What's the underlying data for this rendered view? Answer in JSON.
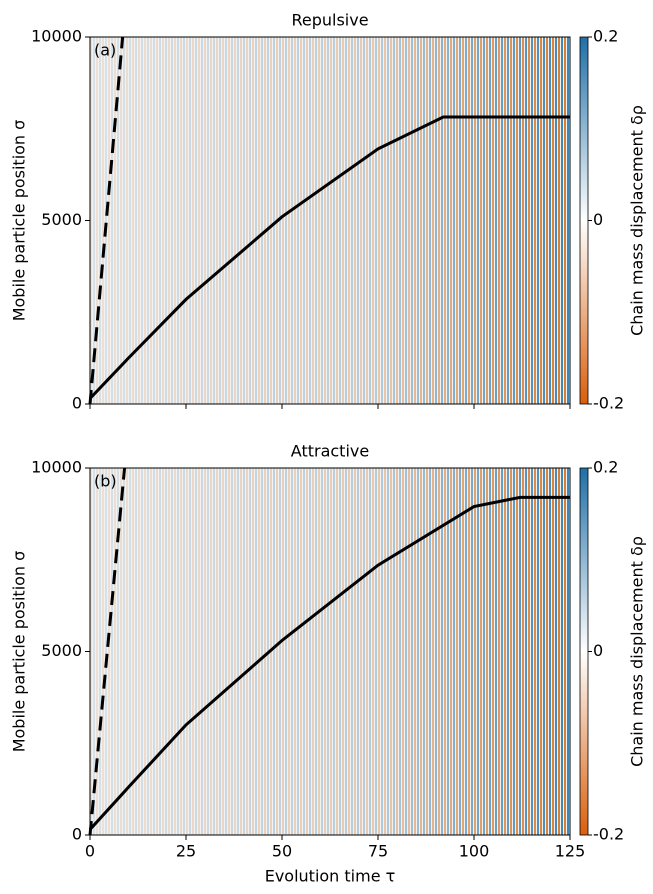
{
  "chart_data": [
    {
      "type": "line",
      "title": "Repulsive",
      "panel_label": "(a)",
      "ylabel": "Mobile particle position σ",
      "xlim": [
        0,
        125
      ],
      "xticks": [
        0,
        25,
        50,
        75,
        100,
        125
      ],
      "ylim": [
        0,
        10000
      ],
      "yticks": [
        0,
        5000,
        10000
      ],
      "series": [
        {
          "color": "#000000",
          "x": [
            0,
            10,
            25,
            50,
            75,
            92,
            125
          ],
          "values": [
            150,
            1250,
            2850,
            5100,
            6950,
            7820,
            7820
          ]
        },
        {
          "color": "#000000",
          "dashed": true,
          "x": [
            0,
            8.5
          ],
          "values": [
            0,
            10000
          ]
        }
      ],
      "colorbar": {
        "label": "Chain mass displacement δρ",
        "lim": [
          -0.2,
          0.2
        ],
        "ticks": [
          0.2,
          0,
          -0.2
        ],
        "colors": [
          "#d95f0e",
          "#ffffff",
          "#1f6fa8"
        ]
      }
    },
    {
      "type": "line",
      "title": "Attractive",
      "panel_label": "(b)",
      "ylabel": "Mobile particle position σ",
      "xlabel": "Evolution time τ",
      "xlim": [
        0,
        125
      ],
      "xticks": [
        0,
        25,
        50,
        75,
        100,
        125
      ],
      "ylim": [
        0,
        10000
      ],
      "yticks": [
        0,
        5000,
        10000
      ],
      "series": [
        {
          "color": "#000000",
          "x": [
            0,
            10,
            25,
            50,
            75,
            100,
            112,
            125
          ],
          "values": [
            150,
            1300,
            3000,
            5300,
            7350,
            8950,
            9200,
            9200
          ]
        },
        {
          "color": "#000000",
          "dashed": true,
          "x": [
            0,
            9
          ],
          "values": [
            0,
            10000
          ]
        }
      ],
      "colorbar": {
        "label": "Chain mass displacement δρ",
        "lim": [
          -0.2,
          0.2
        ],
        "ticks": [
          0.2,
          0,
          -0.2
        ],
        "colors": [
          "#d95f0e",
          "#ffffff",
          "#1f6fa8"
        ]
      }
    }
  ]
}
